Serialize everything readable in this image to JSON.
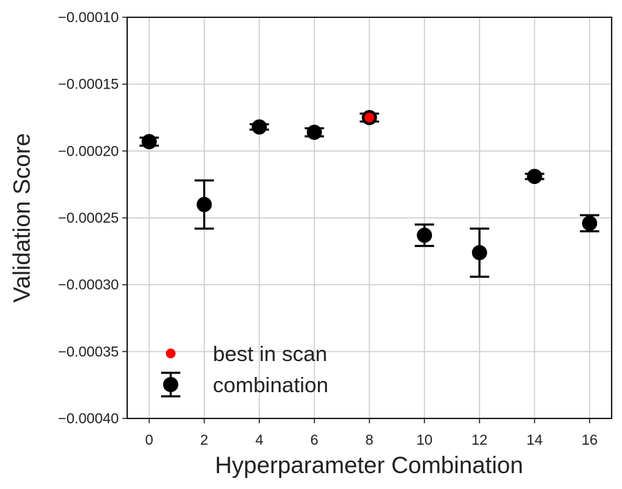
{
  "chart_data": {
    "type": "scatter",
    "xlabel": "Hyperparameter Combination",
    "ylabel": "Validation Score",
    "xlim": [
      -0.8,
      16.8
    ],
    "ylim": [
      -0.0004,
      -0.0001
    ],
    "xticks": [
      0,
      2,
      4,
      6,
      8,
      10,
      12,
      14,
      16
    ],
    "xtick_labels": [
      "0",
      "2",
      "4",
      "6",
      "8",
      "10",
      "12",
      "14",
      "16"
    ],
    "yticks": [
      -0.0004,
      -0.00035,
      -0.0003,
      -0.00025,
      -0.0002,
      -0.00015,
      -0.0001
    ],
    "ytick_labels": [
      "−0.00040",
      "−0.00035",
      "−0.00030",
      "−0.00025",
      "−0.00020",
      "−0.00015",
      "−0.00010"
    ],
    "grid": true,
    "legend_position": "lower-left",
    "series": [
      {
        "name": "combination",
        "color": "#000000",
        "points": [
          {
            "x": 0,
            "y": -0.000193,
            "err": 3e-06
          },
          {
            "x": 2,
            "y": -0.00024,
            "err": 1.8e-05
          },
          {
            "x": 4,
            "y": -0.000182,
            "err": 2e-06
          },
          {
            "x": 6,
            "y": -0.000186,
            "err": 3e-06
          },
          {
            "x": 8,
            "y": -0.000175,
            "err": 3e-06
          },
          {
            "x": 10,
            "y": -0.000263,
            "err": 8e-06
          },
          {
            "x": 12,
            "y": -0.000276,
            "err": 1.8e-05
          },
          {
            "x": 14,
            "y": -0.000219,
            "err": 2e-06
          },
          {
            "x": 16,
            "y": -0.000254,
            "err": 6e-06
          }
        ]
      },
      {
        "name": "best in scan",
        "color": "#ff0000",
        "points": [
          {
            "x": 8,
            "y": -0.000175
          }
        ]
      }
    ]
  }
}
